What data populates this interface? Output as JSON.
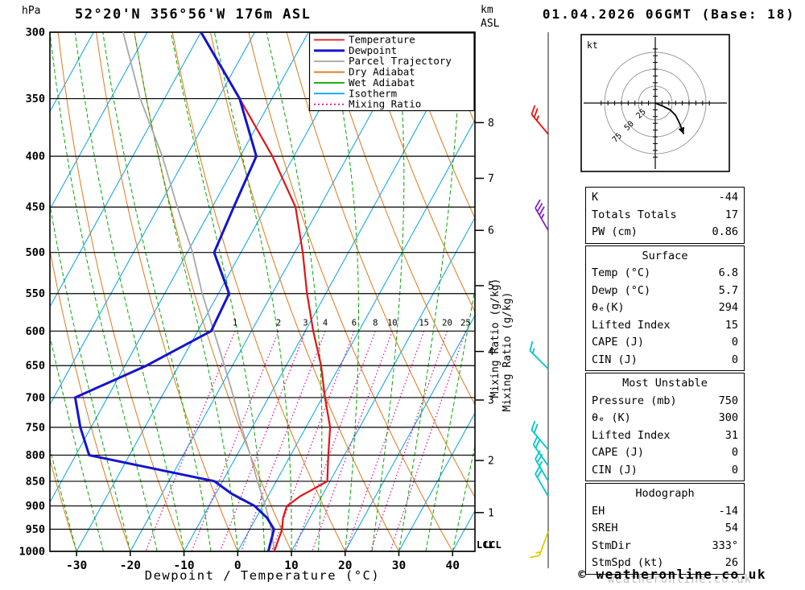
{
  "header": {
    "pressure_unit": "hPa",
    "title": "52°20'N 356°56'W 176m ASL",
    "km_label": "km",
    "asl_label": "ASL",
    "datetime": "01.04.2026 06GMT (Base: 18)"
  },
  "axes": {
    "pressure_ticks": [
      300,
      350,
      400,
      450,
      500,
      550,
      600,
      650,
      700,
      750,
      800,
      850,
      900,
      950,
      1000
    ],
    "temp_ticks": [
      -30,
      -20,
      -10,
      0,
      10,
      20,
      30,
      40
    ],
    "x_axis_label": "Dewpoint / Temperature (°C)",
    "km_ticks": [
      1,
      2,
      3,
      4,
      5,
      6,
      7,
      8
    ],
    "mixing_ratio_axis_label": "Mixing Ratio (g/kg)",
    "mixing_ratio_values": [
      1,
      2,
      3,
      4,
      6,
      8,
      10,
      15,
      20,
      25
    ],
    "lcl_label": "LCL"
  },
  "legend": {
    "items": [
      {
        "label": "Temperature",
        "color": "#e11414",
        "style": "solid"
      },
      {
        "label": "Dewpoint",
        "color": "#1414cd",
        "style": "thick"
      },
      {
        "label": "Parcel Trajectory",
        "color": "#a8a8a8",
        "style": "solid"
      },
      {
        "label": "Dry Adiabat",
        "color": "#e07818",
        "style": "solid"
      },
      {
        "label": "Wet Adiabat",
        "color": "#00a800",
        "style": "solid"
      },
      {
        "label": "Isotherm",
        "color": "#00a2e8",
        "style": "solid"
      },
      {
        "label": "Mixing Ratio",
        "color": "#e800a8",
        "style": "dotted"
      }
    ]
  },
  "chart_data": {
    "type": "line",
    "variant": "skew-t-log-p-sounding",
    "title": "52°20'N 356°56'W 176m ASL",
    "xlabel": "Dewpoint / Temperature (°C)",
    "ylabel": "Pressure (hPa)",
    "x_range": [
      -35,
      44
    ],
    "y_range_hPa": [
      300,
      1000
    ],
    "series": [
      {
        "name": "Temperature",
        "color": "#e11414",
        "points_p_T": [
          [
            300,
            -60
          ],
          [
            350,
            -46
          ],
          [
            400,
            -34
          ],
          [
            450,
            -24.5
          ],
          [
            500,
            -18.5
          ],
          [
            550,
            -13.5
          ],
          [
            600,
            -8.5
          ],
          [
            650,
            -3.5
          ],
          [
            700,
            0.5
          ],
          [
            750,
            4.5
          ],
          [
            800,
            7
          ],
          [
            850,
            9.5
          ],
          [
            880,
            6
          ],
          [
            900,
            4.5
          ],
          [
            925,
            5
          ],
          [
            950,
            6
          ],
          [
            1000,
            6.8
          ]
        ]
      },
      {
        "name": "Dewpoint",
        "color": "#1414cd",
        "points_p_T": [
          [
            300,
            -60
          ],
          [
            350,
            -46
          ],
          [
            400,
            -37
          ],
          [
            450,
            -36
          ],
          [
            500,
            -35
          ],
          [
            550,
            -28
          ],
          [
            600,
            -27.5
          ],
          [
            650,
            -36
          ],
          [
            700,
            -46
          ],
          [
            750,
            -42
          ],
          [
            800,
            -37.5
          ],
          [
            850,
            -11.5
          ],
          [
            875,
            -7
          ],
          [
            900,
            -1.5
          ],
          [
            925,
            2
          ],
          [
            950,
            4.5
          ],
          [
            1000,
            5.7
          ]
        ]
      },
      {
        "name": "Parcel Trajectory",
        "color": "#a8a8a8",
        "points_p_T": [
          [
            300,
            -74.5
          ],
          [
            350,
            -64.5
          ],
          [
            400,
            -54.5
          ],
          [
            450,
            -46.5
          ],
          [
            500,
            -39
          ],
          [
            550,
            -33
          ],
          [
            600,
            -27
          ],
          [
            650,
            -21.5
          ],
          [
            700,
            -16.5
          ],
          [
            750,
            -12
          ],
          [
            800,
            -7.5
          ],
          [
            850,
            -3.5
          ],
          [
            900,
            0.5
          ],
          [
            950,
            4
          ],
          [
            1000,
            6.8
          ]
        ]
      }
    ]
  },
  "wind_barbs": [
    {
      "pressure": 380,
      "speed_kt": 25,
      "direction_deg": 320,
      "color": "#ee1111"
    },
    {
      "pressure": 475,
      "speed_kt": 35,
      "direction_deg": 330,
      "color": "#8822cc"
    },
    {
      "pressure": 655,
      "speed_kt": 15,
      "direction_deg": 315,
      "color": "#00c8c8"
    },
    {
      "pressure": 790,
      "speed_kt": 20,
      "direction_deg": 320,
      "color": "#00c8c8"
    },
    {
      "pressure": 820,
      "speed_kt": 20,
      "direction_deg": 325,
      "color": "#00c8c8"
    },
    {
      "pressure": 850,
      "speed_kt": 25,
      "direction_deg": 330,
      "color": "#00c8c8"
    },
    {
      "pressure": 880,
      "speed_kt": 20,
      "direction_deg": 330,
      "color": "#00c8c8"
    },
    {
      "pressure": 955,
      "speed_kt": 15,
      "direction_deg": 200,
      "color": "#ddd000"
    }
  ],
  "hodograph": {
    "unit": "kt",
    "ring_labels": [
      "25",
      "50",
      "75"
    ],
    "rings_kt": [
      25,
      50,
      75
    ],
    "trace_kt": [
      [
        0,
        0
      ],
      [
        12,
        5
      ],
      [
        22,
        10
      ],
      [
        30,
        18
      ],
      [
        36,
        30
      ],
      [
        42,
        46
      ]
    ]
  },
  "tables": [
    {
      "title": "",
      "rows": [
        [
          "K",
          "-44"
        ],
        [
          "Totals Totals",
          "17"
        ],
        [
          "PW (cm)",
          "0.86"
        ]
      ]
    },
    {
      "title": "Surface",
      "rows": [
        [
          "Temp (°C)",
          "6.8"
        ],
        [
          "Dewp (°C)",
          "5.7"
        ],
        [
          "θₑ(K)",
          "294"
        ],
        [
          "Lifted Index",
          "15"
        ],
        [
          "CAPE (J)",
          "0"
        ],
        [
          "CIN (J)",
          "0"
        ]
      ]
    },
    {
      "title": "Most Unstable",
      "rows": [
        [
          "Pressure (mb)",
          "750"
        ],
        [
          "θₑ (K)",
          "300"
        ],
        [
          "Lifted Index",
          "31"
        ],
        [
          "CAPE (J)",
          "0"
        ],
        [
          "CIN (J)",
          "0"
        ]
      ]
    },
    {
      "title": "Hodograph",
      "rows": [
        [
          "EH",
          "-14"
        ],
        [
          "SREH",
          "54"
        ],
        [
          "StmDir",
          "333°"
        ],
        [
          "StmSpd (kt)",
          "26"
        ]
      ]
    }
  ],
  "footer": {
    "watermark": "weatheronline.co.uk",
    "copyright": "© weatheronline.co.uk"
  }
}
